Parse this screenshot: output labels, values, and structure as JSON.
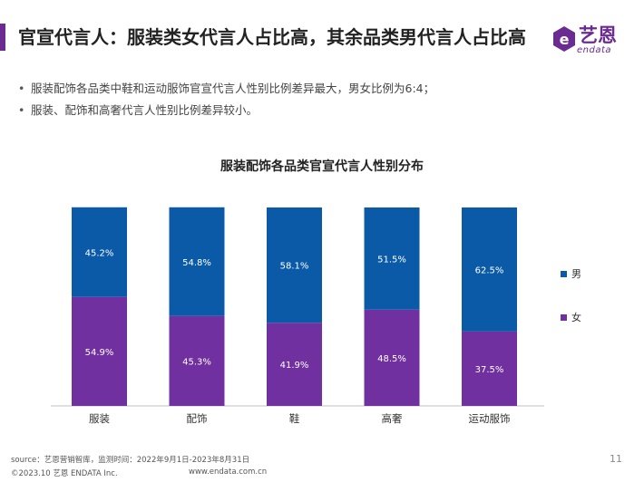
{
  "header": {
    "title": "官宣代言人：服装类女代言人占比高，其余品类男代言人占比高",
    "accent_color": "#6a2c91"
  },
  "logo": {
    "name": "艺恩",
    "sub": "endata",
    "icon": "endata-logo-icon"
  },
  "bullets": [
    "服装配饰各品类中鞋和运动服饰官宣代言人性别比例差异最大，男女比例为6:4；",
    "服装、配饰和高奢代言人性别比例差异较小。"
  ],
  "chart_data": {
    "type": "bar",
    "stacked": true,
    "title": "服装配饰各品类官宣代言人性别分布",
    "categories": [
      "服装",
      "配饰",
      "鞋",
      "高奢",
      "运动服饰"
    ],
    "series": [
      {
        "name": "女",
        "values": [
          54.9,
          45.3,
          41.9,
          48.5,
          37.5
        ],
        "labels": [
          "54.9%",
          "45.3%",
          "41.9%",
          "48.5%",
          "37.5%"
        ],
        "color": "#7030a0"
      },
      {
        "name": "男",
        "values": [
          45.2,
          54.8,
          58.1,
          51.5,
          62.5
        ],
        "labels": [
          "45.2%",
          "54.8%",
          "58.1%",
          "51.5%",
          "62.5%"
        ],
        "color": "#0b5aa7"
      }
    ],
    "ylim": [
      0,
      100
    ],
    "legend": [
      "男",
      "女"
    ],
    "legend_position": "right"
  },
  "footer": {
    "source": "source：艺恩营销智库，监测时间：2022年9月1日-2023年8月31日",
    "copyright": "©2023.10  艺恩  ENDATA Inc.",
    "url": "www.endata.com.cn",
    "page": "11"
  }
}
